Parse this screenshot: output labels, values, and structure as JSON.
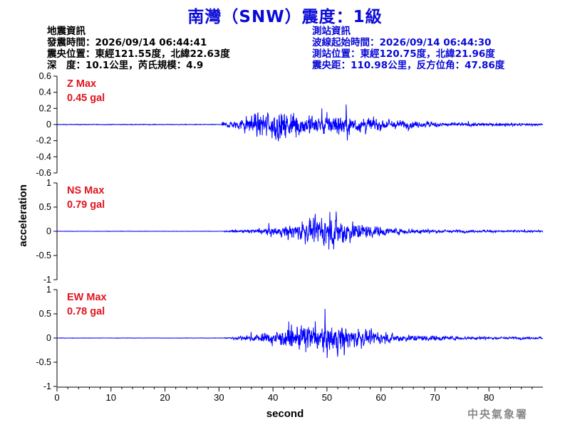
{
  "title": "南灣（SNW）震度：1級",
  "earthquake_info": {
    "heading": "地震資訊",
    "origin_time": "發震時間：2026/09/14 06:44:41",
    "epicenter": "震央位置：東經121.55度，北緯22.63度",
    "depth_magnitude": "深　度：10.1公里，芮氏規模：4.9"
  },
  "station_info": {
    "heading": "測站資訊",
    "wave_start": "波線起始時間：2026/09/14 06:44:30",
    "station_location": "測站位置：東經120.75度，北緯21.96度",
    "distance_azimuth": "震央距：110.98公里，反方位角：47.86度"
  },
  "credit": "中央氣象署",
  "colors": {
    "trace": "#0000ff",
    "title": "#0a0ad8",
    "max_label": "#e0141e",
    "axis": "#000000"
  },
  "chart_data": {
    "type": "line",
    "xlabel": "second",
    "ylabel": "acceleration",
    "xlim": [
      0,
      90
    ],
    "x_ticks": [
      "0",
      "10",
      "20",
      "30",
      "40",
      "50",
      "60",
      "70",
      "80"
    ],
    "x_tick_values": [
      0,
      10,
      20,
      30,
      40,
      50,
      60,
      70,
      80
    ],
    "panels": [
      {
        "component": "Z",
        "max_label": "Z Max",
        "max_value": "0.45 gal",
        "ylim": [
          -0.6,
          0.6
        ],
        "y_ticks": [
          "0.6",
          "0.4",
          "0.2",
          "0",
          "-0.2",
          "-0.4",
          "-0.6"
        ],
        "y_tick_values": [
          0.6,
          0.4,
          0.2,
          0,
          -0.2,
          -0.4,
          -0.6
        ],
        "noise": 0.01,
        "onset": 30.5,
        "envelope": [
          [
            30.5,
            0.06
          ],
          [
            33,
            0.12
          ],
          [
            36,
            0.28
          ],
          [
            39,
            0.38
          ],
          [
            42,
            0.4
          ],
          [
            45,
            0.34
          ],
          [
            49,
            0.3
          ],
          [
            52,
            0.32
          ],
          [
            55,
            0.24
          ],
          [
            60,
            0.16
          ],
          [
            66,
            0.1
          ],
          [
            72,
            0.06
          ],
          [
            80,
            0.04
          ],
          [
            90,
            0.03
          ]
        ]
      },
      {
        "component": "NS",
        "max_label": "NS Max",
        "max_value": "0.79 gal",
        "ylim": [
          -1,
          1
        ],
        "y_ticks": [
          "1",
          "0.5",
          "0",
          "-0.5",
          "-1"
        ],
        "y_tick_values": [
          1,
          0.5,
          0,
          -0.5,
          -1
        ],
        "noise": 0.01,
        "onset": 31,
        "envelope": [
          [
            31,
            0.03
          ],
          [
            35,
            0.06
          ],
          [
            38,
            0.12
          ],
          [
            41,
            0.2
          ],
          [
            44,
            0.36
          ],
          [
            47,
            0.5
          ],
          [
            50,
            0.62
          ],
          [
            52,
            0.72
          ],
          [
            55,
            0.45
          ],
          [
            58,
            0.3
          ],
          [
            62,
            0.16
          ],
          [
            68,
            0.1
          ],
          [
            75,
            0.06
          ],
          [
            90,
            0.04
          ]
        ]
      },
      {
        "component": "EW",
        "max_label": "EW Max",
        "max_value": "0.78 gal",
        "ylim": [
          -1,
          1
        ],
        "y_ticks": [
          "1",
          "0.5",
          "0",
          "-0.5",
          "-1"
        ],
        "y_tick_values": [
          1,
          0.5,
          0,
          -0.5,
          -1
        ],
        "noise": 0.01,
        "onset": 31,
        "envelope": [
          [
            31,
            0.03
          ],
          [
            34,
            0.08
          ],
          [
            38,
            0.2
          ],
          [
            41,
            0.34
          ],
          [
            44,
            0.5
          ],
          [
            46,
            0.62
          ],
          [
            49,
            0.5
          ],
          [
            52,
            0.7
          ],
          [
            54,
            0.5
          ],
          [
            57,
            0.34
          ],
          [
            61,
            0.2
          ],
          [
            67,
            0.14
          ],
          [
            72,
            0.1
          ],
          [
            80,
            0.06
          ],
          [
            90,
            0.05
          ]
        ]
      }
    ]
  }
}
